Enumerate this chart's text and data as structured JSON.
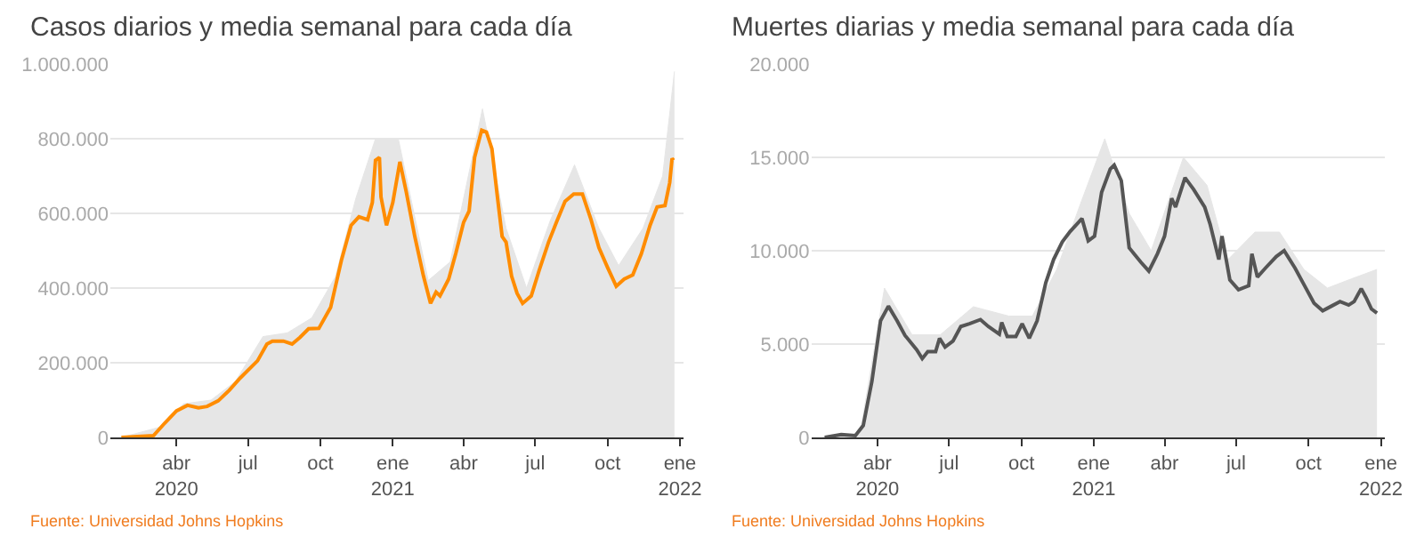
{
  "chart_data": [
    {
      "type": "line",
      "title": "Casos diarios y media semanal para cada día",
      "annotations": [
        "Fuente: Universidad Johns Hopkins"
      ],
      "grid": "y",
      "xlim": [
        "2020-01-08",
        "2022-01-06"
      ],
      "xticks": [
        {
          "value": "2020-04-01",
          "label": "abr\n2020"
        },
        {
          "value": "2020-07-01",
          "label": "jul"
        },
        {
          "value": "2020-10-01",
          "label": "oct"
        },
        {
          "value": "2021-01-01",
          "label": "ene\n2021"
        },
        {
          "value": "2021-04-01",
          "label": "abr"
        },
        {
          "value": "2021-07-01",
          "label": "jul"
        },
        {
          "value": "2021-10-01",
          "label": "oct"
        },
        {
          "value": "2022-01-01",
          "label": "ene\n2022"
        }
      ],
      "ylim": [
        0,
        1000000
      ],
      "yticks": [
        {
          "value": 0,
          "label": "0"
        },
        {
          "value": 200000,
          "label": "200.000"
        },
        {
          "value": 400000,
          "label": "400.000"
        },
        {
          "value": 600000,
          "label": "600.000"
        },
        {
          "value": 800000,
          "label": "800.000"
        },
        {
          "value": 1000000,
          "label": "1.000.000"
        }
      ],
      "series": [
        {
          "type": "area",
          "color": "#e6e6e6",
          "x": [
            "2020-01-22",
            "2020-03-15",
            "2020-04-10",
            "2020-05-15",
            "2020-06-15",
            "2020-07-20",
            "2020-08-20",
            "2020-09-20",
            "2020-10-20",
            "2020-11-15",
            "2020-12-10",
            "2021-01-08",
            "2021-02-15",
            "2021-03-15",
            "2021-04-25",
            "2021-05-25",
            "2021-06-20",
            "2021-07-20",
            "2021-08-20",
            "2021-09-20",
            "2021-10-15",
            "2021-11-15",
            "2021-12-10",
            "2021-12-25"
          ],
          "values": [
            0,
            30000,
            90000,
            100000,
            150000,
            270000,
            280000,
            320000,
            430000,
            640000,
            800000,
            800000,
            420000,
            470000,
            880000,
            560000,
            400000,
            580000,
            730000,
            560000,
            460000,
            560000,
            700000,
            980000
          ]
        },
        {
          "color": "#ff8c00",
          "x": [
            "2020-01-22",
            "2020-03-03",
            "2020-03-17",
            "2020-04-01",
            "2020-04-15",
            "2020-04-29",
            "2020-05-10",
            "2020-05-24",
            "2020-06-07",
            "2020-06-21",
            "2020-07-13",
            "2020-07-25",
            "2020-08-01",
            "2020-08-15",
            "2020-08-26",
            "2020-09-05",
            "2020-09-16",
            "2020-09-29",
            "2020-10-14",
            "2020-10-28",
            "2020-11-09",
            "2020-11-19",
            "2020-11-30",
            "2020-12-06",
            "2020-12-10",
            "2020-12-15",
            "2020-12-17",
            "2020-12-24",
            "2021-01-01",
            "2021-01-10",
            "2021-01-18",
            "2021-01-29",
            "2021-02-09",
            "2021-02-18",
            "2021-02-25",
            "2021-03-02",
            "2021-03-13",
            "2021-03-22",
            "2021-04-01",
            "2021-04-08",
            "2021-04-15",
            "2021-04-24",
            "2021-04-30",
            "2021-05-07",
            "2021-05-14",
            "2021-05-20",
            "2021-05-25",
            "2021-06-01",
            "2021-06-08",
            "2021-06-15",
            "2021-06-26",
            "2021-07-06",
            "2021-07-18",
            "2021-07-28",
            "2021-08-08",
            "2021-08-19",
            "2021-08-30",
            "2021-09-10",
            "2021-09-20",
            "2021-10-01",
            "2021-10-12",
            "2021-10-22",
            "2021-11-02",
            "2021-11-13",
            "2021-11-24",
            "2021-12-03",
            "2021-12-13",
            "2021-12-19",
            "2021-12-22",
            "2021-12-24"
          ],
          "values": [
            0,
            5000,
            38000,
            71000,
            86000,
            79000,
            83000,
            98000,
            126000,
            159000,
            205000,
            250000,
            258000,
            258000,
            250000,
            268000,
            291000,
            292000,
            348000,
            477000,
            568000,
            591000,
            583000,
            629000,
            742000,
            750000,
            644000,
            568000,
            629000,
            738000,
            659000,
            538000,
            432000,
            359000,
            389000,
            379000,
            424000,
            492000,
            576000,
            606000,
            750000,
            823000,
            818000,
            773000,
            644000,
            538000,
            523000,
            432000,
            386000,
            359000,
            379000,
            447000,
            523000,
            576000,
            632000,
            652000,
            652000,
            583000,
            508000,
            455000,
            405000,
            424000,
            435000,
            492000,
            568000,
            617000,
            621000,
            682000,
            747000,
            742000
          ]
        }
      ]
    },
    {
      "type": "line",
      "title": "Muertes diarias y media semanal para cada día",
      "annotations": [
        "Fuente: Universidad Johns Hopkins"
      ],
      "grid": "y",
      "xlim": [
        "2020-01-08",
        "2022-01-06"
      ],
      "xticks": [
        {
          "value": "2020-04-01",
          "label": "abr\n2020"
        },
        {
          "value": "2020-07-01",
          "label": "jul"
        },
        {
          "value": "2020-10-01",
          "label": "oct"
        },
        {
          "value": "2021-01-01",
          "label": "ene\n2021"
        },
        {
          "value": "2021-04-01",
          "label": "abr"
        },
        {
          "value": "2021-07-01",
          "label": "jul"
        },
        {
          "value": "2021-10-01",
          "label": "oct"
        },
        {
          "value": "2022-01-01",
          "label": "ene\n2022"
        }
      ],
      "ylim": [
        0,
        20000
      ],
      "yticks": [
        {
          "value": 0,
          "label": "0"
        },
        {
          "value": 5000,
          "label": "5.000"
        },
        {
          "value": 10000,
          "label": "10.000"
        },
        {
          "value": 15000,
          "label": "15.000"
        },
        {
          "value": 20000,
          "label": "20.000"
        }
      ],
      "series": [
        {
          "type": "area",
          "color": "#e6e6e6",
          "x": [
            "2020-01-22",
            "2020-03-10",
            "2020-03-25",
            "2020-04-10",
            "2020-05-15",
            "2020-06-20",
            "2020-08-01",
            "2020-09-15",
            "2020-10-15",
            "2020-11-15",
            "2020-12-15",
            "2021-01-15",
            "2021-02-15",
            "2021-03-15",
            "2021-04-25",
            "2021-05-25",
            "2021-06-20",
            "2021-07-25",
            "2021-08-25",
            "2021-09-25",
            "2021-10-25",
            "2021-11-25",
            "2021-12-27"
          ],
          "values": [
            0,
            200,
            4000,
            8000,
            5500,
            5500,
            7000,
            6500,
            6500,
            9000,
            12500,
            16000,
            12000,
            10000,
            15000,
            13500,
            9500,
            11000,
            11000,
            9000,
            8000,
            8500,
            9000
          ]
        },
        {
          "color": "#555555",
          "x": [
            "2020-01-25",
            "2020-02-15",
            "2020-03-04",
            "2020-03-14",
            "2020-03-25",
            "2020-04-05",
            "2020-04-15",
            "2020-04-26",
            "2020-05-06",
            "2020-05-21",
            "2020-05-28",
            "2020-06-04",
            "2020-06-14",
            "2020-06-19",
            "2020-06-26",
            "2020-07-06",
            "2020-07-16",
            "2020-07-27",
            "2020-08-10",
            "2020-08-20",
            "2020-09-03",
            "2020-09-06",
            "2020-09-13",
            "2020-09-24",
            "2020-10-02",
            "2020-10-11",
            "2020-10-21",
            "2020-11-01",
            "2020-11-11",
            "2020-11-22",
            "2020-12-02",
            "2020-12-17",
            "2020-12-25",
            "2021-01-02",
            "2021-01-11",
            "2021-01-22",
            "2021-01-27",
            "2021-02-05",
            "2021-02-15",
            "2021-03-02",
            "2021-03-12",
            "2021-03-23",
            "2021-04-01",
            "2021-04-10",
            "2021-04-15",
            "2021-04-27",
            "2021-05-08",
            "2021-05-22",
            "2021-05-29",
            "2021-06-09",
            "2021-06-13",
            "2021-06-23",
            "2021-07-04",
            "2021-07-17",
            "2021-07-21",
            "2021-07-28",
            "2021-08-07",
            "2021-08-21",
            "2021-08-31",
            "2021-09-14",
            "2021-09-24",
            "2021-10-08",
            "2021-10-19",
            "2021-10-30",
            "2021-11-10",
            "2021-11-21",
            "2021-11-28",
            "2021-12-07",
            "2021-12-13",
            "2021-12-20",
            "2021-12-27"
          ],
          "values": [
            0,
            150,
            100,
            640,
            3000,
            6250,
            7030,
            6250,
            5470,
            4690,
            4220,
            4590,
            4590,
            5310,
            4840,
            5160,
            5940,
            6090,
            6310,
            5940,
            5530,
            6160,
            5410,
            5410,
            6090,
            5310,
            6250,
            8280,
            9530,
            10470,
            11030,
            11720,
            10530,
            10780,
            13130,
            14380,
            14590,
            13750,
            10160,
            9380,
            8910,
            9840,
            10780,
            12810,
            12340,
            13910,
            13280,
            12340,
            11410,
            9530,
            10780,
            8440,
            7910,
            8130,
            9840,
            8590,
            9060,
            9690,
            10000,
            9060,
            8280,
            7190,
            6780,
            7030,
            7280,
            7090,
            7280,
            7970,
            7500,
            6880,
            6660
          ]
        }
      ]
    }
  ]
}
